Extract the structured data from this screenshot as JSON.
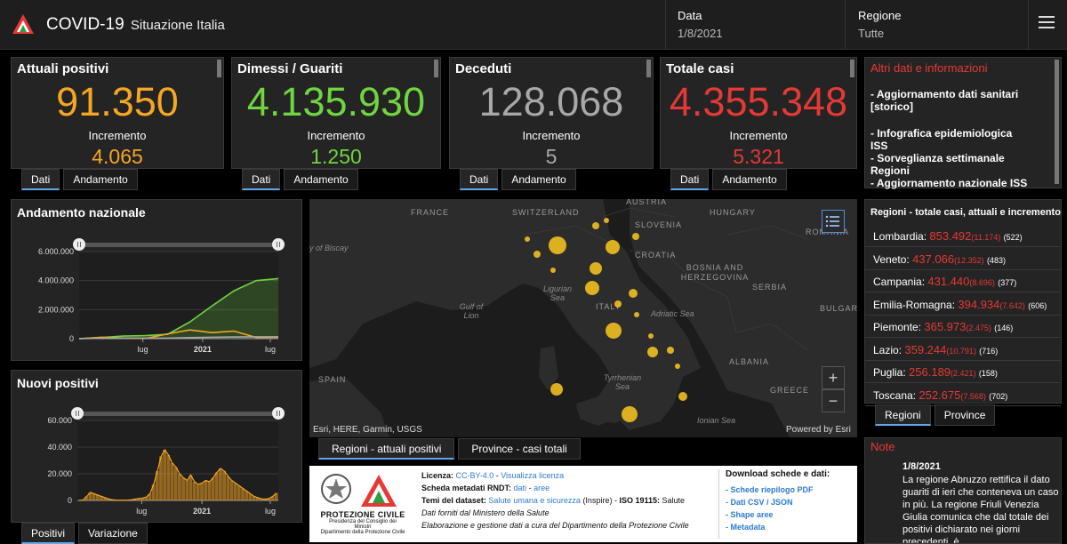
{
  "header": {
    "title": "COVID-19",
    "subtitle": "Situazione Italia",
    "date_label": "Data",
    "date_value": "1/8/2021",
    "region_label": "Regione",
    "region_value": "Tutte"
  },
  "cards": [
    {
      "title": "Attuali positivi",
      "value": "91.350",
      "inc_label": "Incremento",
      "inc_value": "4.065",
      "color": "#f5a623"
    },
    {
      "title": "Dimessi / Guariti",
      "value": "4.135.930",
      "inc_label": "Incremento",
      "inc_value": "1.250",
      "color": "#6fd63f"
    },
    {
      "title": "Deceduti",
      "value": "128.068",
      "inc_label": "Incremento",
      "inc_value": "5",
      "color": "#a8a8a8"
    },
    {
      "title": "Totale casi",
      "value": "4.355.348",
      "inc_label": "Incremento",
      "inc_value": "5.321",
      "color": "#e53935"
    }
  ],
  "card_tabs": {
    "dati": "Dati",
    "andamento": "Andamento"
  },
  "altri": {
    "title": "Altri dati e informazioni",
    "items": [
      "- Aggiornamento dati sanitari [storico]",
      "- Infografica epidemiologica ISS",
      "- Sorveglianza settimanale Regioni",
      "- Aggiornamento nazionale ISS"
    ]
  },
  "regions": {
    "title": "Regioni - totale casi, attuali e incremento",
    "rows": [
      {
        "name": "Lombardia:",
        "total": "853.492",
        "inc": "(11.174)",
        "att": "(522)"
      },
      {
        "name": "Veneto:",
        "total": "437.066",
        "inc": "(12.352)",
        "att": "(483)"
      },
      {
        "name": "Campania:",
        "total": "431.440",
        "inc": "(8.696)",
        "att": "(377)"
      },
      {
        "name": "Emilia-Romagna:",
        "total": "394.934",
        "inc": "(7.642)",
        "att": "(606)"
      },
      {
        "name": "Piemonte:",
        "total": "365.973",
        "inc": "(2.475)",
        "att": "(146)"
      },
      {
        "name": "Lazio:",
        "total": "359.244",
        "inc": "(10.791)",
        "att": "(716)"
      },
      {
        "name": "Puglia:",
        "total": "256.189",
        "inc": "(2.421)",
        "att": "(158)"
      },
      {
        "name": "Toscana:",
        "total": "252.675",
        "inc": "(7.568)",
        "att": "(702)"
      }
    ],
    "tabs": [
      "Regioni",
      "Province"
    ]
  },
  "note": {
    "title": "Note",
    "date": "1/8/2021",
    "text": "La regione Abruzzo rettifica il dato guariti di ieri che conteneva un caso in più. La regione Friuli Venezia Giulia comunica che dal totale dei positivi dichiarato nei giorni precedenti, è"
  },
  "chart_data": [
    {
      "type": "line",
      "title": "Andamento nazionale",
      "x_ticks": [
        "lug",
        "2021",
        "lug"
      ],
      "y_ticks": [
        "6.000.000",
        "4.000.000",
        "2.000.000",
        "0"
      ],
      "ylim": [
        0,
        6000000
      ],
      "x": [
        "2020-02",
        "2020-04",
        "2020-06",
        "2020-08",
        "2020-10",
        "2020-12",
        "2021-02",
        "2021-04",
        "2021-06",
        "2021-08"
      ],
      "series": [
        {
          "color": "#6fd63f",
          "values": [
            0,
            80000,
            180000,
            210000,
            300000,
            1150000,
            2250000,
            3300000,
            4000000,
            4135930
          ]
        },
        {
          "color": "#f5a623",
          "values": [
            0,
            100000,
            30000,
            14000,
            330000,
            600000,
            420000,
            520000,
            80000,
            91350
          ]
        },
        {
          "color": "#a8a8a8",
          "values": [
            0,
            27000,
            34000,
            35000,
            38000,
            72000,
            95000,
            116000,
            127000,
            128068
          ]
        }
      ]
    },
    {
      "type": "bar",
      "title": "Nuovi positivi",
      "x_ticks": [
        "lug",
        "2021",
        "lug"
      ],
      "y_ticks": [
        "60.000",
        "40.000",
        "20.000",
        "0"
      ],
      "ylim": [
        0,
        60000
      ],
      "color": "#f5a623",
      "values": [
        0,
        300,
        3000,
        6000,
        5000,
        4000,
        3000,
        2000,
        1000,
        500,
        300,
        200,
        200,
        300,
        500,
        1000,
        1500,
        1800,
        2500,
        5000,
        12000,
        22000,
        33000,
        38000,
        34000,
        28000,
        25000,
        20000,
        17000,
        15000,
        19000,
        14000,
        12000,
        13000,
        15000,
        14000,
        17000,
        21000,
        24000,
        22000,
        18000,
        15000,
        13000,
        11000,
        9000,
        7000,
        5000,
        3000,
        2000,
        1200,
        1000,
        1500,
        3000,
        5500
      ]
    }
  ],
  "nuovi_tabs": [
    "Positivi",
    "Variazione"
  ],
  "map": {
    "countries": [
      "FRANCE",
      "SWITZERLAND",
      "AUSTRIA",
      "HUNGARY",
      "SLOVENIA",
      "CROATIA",
      "BOSNIA AND HERZEGOVINA",
      "SERBIA",
      "ITALY",
      "SPAIN",
      "ALBANIA",
      "GREECE",
      "ROMANIA",
      "BULGAR"
    ],
    "seas": [
      "Ligurian Sea",
      "Adriatic Sea",
      "Tyrrhenian Sea",
      "Ionian Sea",
      "Gulf of Lion",
      "y of Biscay"
    ],
    "attribution": "Esri, HERE, Garmin, USGS",
    "powered": "Powered by Esri",
    "zoom_in": "+",
    "zoom_out": "−",
    "point_color": "#f0c020",
    "tabs": [
      "Regioni - attuali positivi",
      "Province - casi totali"
    ]
  },
  "info": {
    "licenza_label": "Licenza:",
    "licenza_value": "CC-BY-4.0",
    "licenza_sep": " - ",
    "licenza_link": "Visualizza licenza",
    "scheda_label": "Scheda metadati RNDT:",
    "scheda_link1": "dati",
    "scheda_sep": " - ",
    "scheda_link2": "aree",
    "temi_label": "Temi del dataset:",
    "temi_link": "Salute umana e sicurezza",
    "temi_rest": " (Inspire) - ",
    "iso_label": "ISO 19115:",
    "iso_value": " Salute",
    "fonte": "Dati forniti dal Ministero della Salute",
    "elaborazione": "Elaborazione e gestione dati a cura del Dipartimento della Protezione Civile",
    "download_title": "Download schede e dati:",
    "download_items": [
      "- Schede riepilogo PDF",
      "- Dati CSV / JSON",
      "- Shape aree",
      "- Metadata"
    ],
    "pc_name": "PROTEZIONE CIVILE",
    "pc_sub1": "Presidenza del Consiglio dei Ministri",
    "pc_sub2": "Dipartimento della Protezione Civile"
  }
}
